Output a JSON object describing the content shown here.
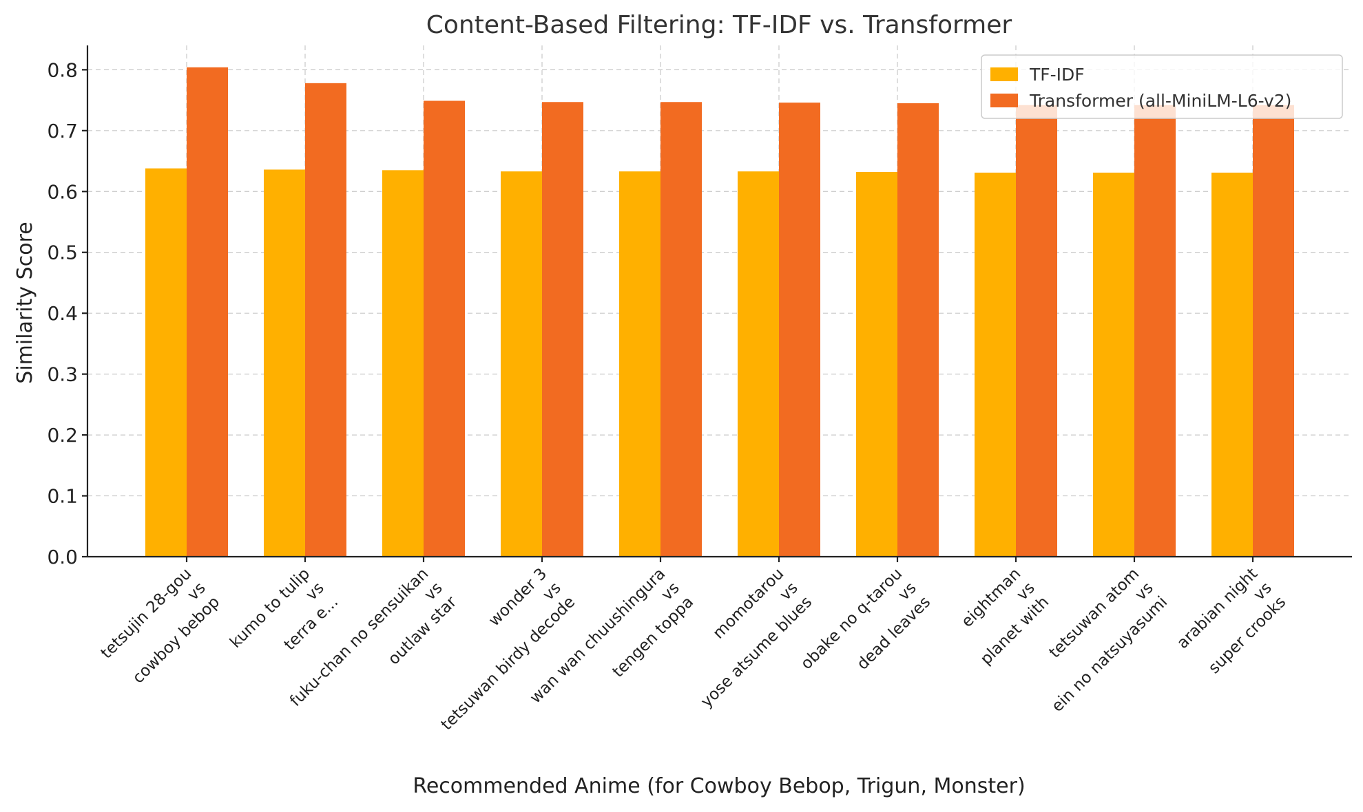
{
  "chart_data": {
    "type": "bar",
    "title": "Content-Based Filtering: TF-IDF vs. Transformer",
    "xlabel": "Recommended Anime (for Cowboy Bebop, Trigun, Monster)",
    "ylabel": "Similarity Score",
    "ylim": [
      0,
      0.84
    ],
    "yticks": [
      0.0,
      0.1,
      0.2,
      0.3,
      0.4,
      0.5,
      0.6,
      0.7,
      0.8
    ],
    "grid": true,
    "legend_position": "top-right",
    "categories": [
      [
        "tetsujin 28-gou",
        "vs",
        "cowboy bebop"
      ],
      [
        "kumo to tulip",
        "vs",
        "terra e..."
      ],
      [
        "fuku-chan no sensuikan",
        "vs",
        "outlaw star"
      ],
      [
        "wonder 3",
        "vs",
        "tetsuwan birdy decode"
      ],
      [
        "wan wan chuushingura",
        "vs",
        "tengen toppa"
      ],
      [
        "momotarou",
        "vs",
        "yose atsume blues"
      ],
      [
        "obake no q-tarou",
        "vs",
        "dead leaves"
      ],
      [
        "eightman",
        "vs",
        "planet with"
      ],
      [
        "tetsuwan atom",
        "vs",
        "ein no natsuyasumi"
      ],
      [
        "arabian night",
        "vs",
        "super crooks"
      ]
    ],
    "series": [
      {
        "name": "TF-IDF",
        "color": "#FFB000",
        "values": [
          0.638,
          0.636,
          0.635,
          0.633,
          0.633,
          0.633,
          0.632,
          0.631,
          0.631,
          0.631
        ]
      },
      {
        "name": "Transformer (all-MiniLM-L6-v2)",
        "color": "#F26B21",
        "values": [
          0.804,
          0.778,
          0.749,
          0.747,
          0.747,
          0.746,
          0.745,
          0.742,
          0.742,
          0.742
        ]
      }
    ]
  }
}
